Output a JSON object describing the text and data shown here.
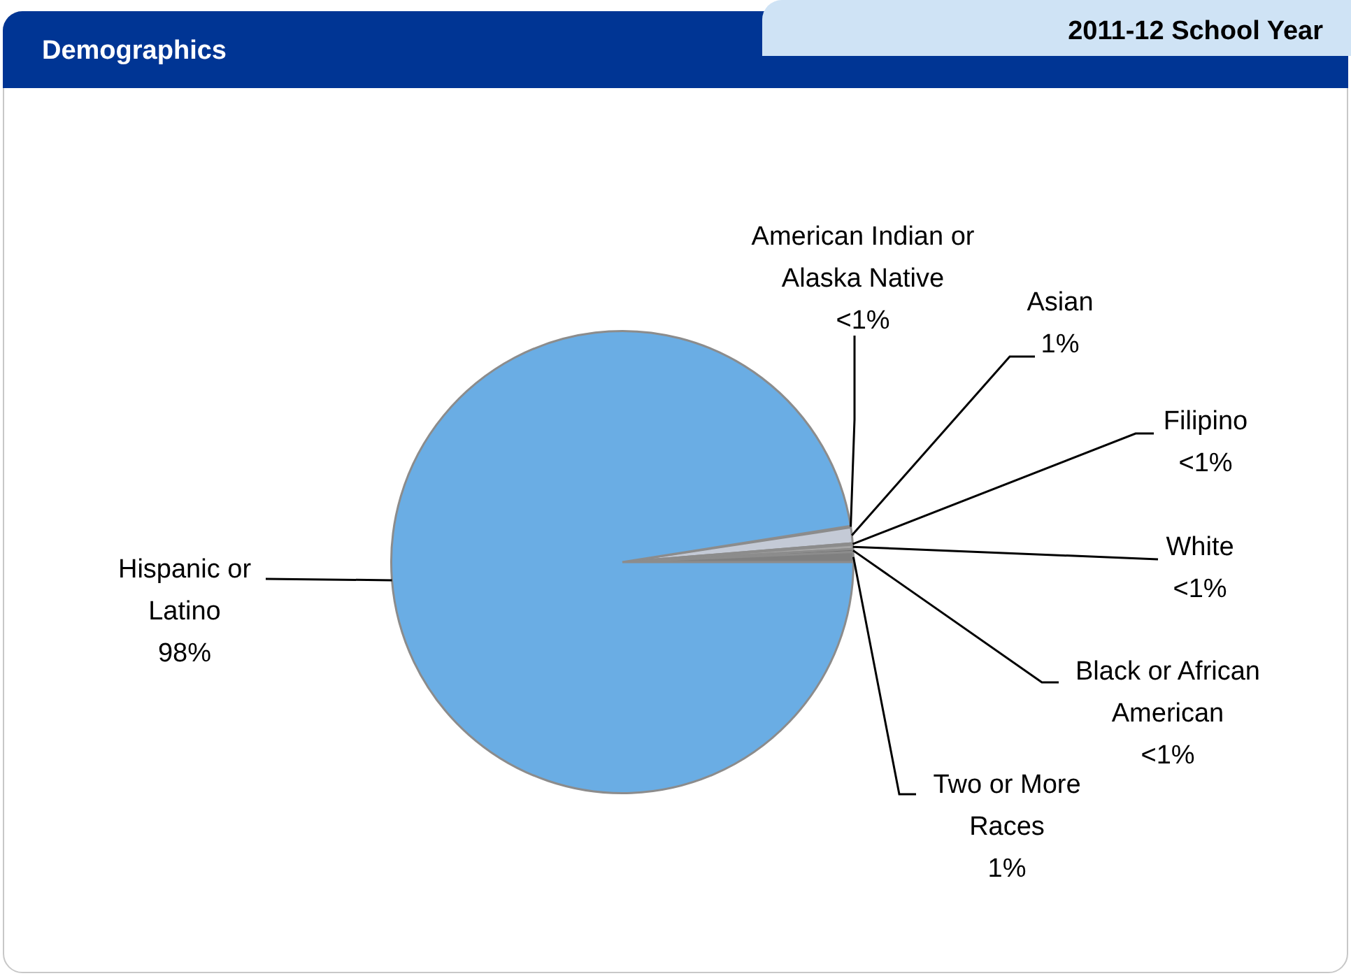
{
  "chart_data": {
    "type": "pie",
    "title": "Demographics",
    "subtitle": "2011-12 School Year",
    "categories": [
      "American Indian or Alaska Native",
      "Asian",
      "Filipino",
      "White",
      "Black or African American",
      "Two or More Races",
      "Hispanic or Latino"
    ],
    "values": [
      0.1,
      1.1,
      0.1,
      0.3,
      0.2,
      0.7,
      97.5
    ],
    "value_labels": [
      "<1%",
      "1%",
      "<1%",
      "<1%",
      "<1%",
      "1%",
      "98%"
    ],
    "colors": [
      "#5a5a5a",
      "#c4cad6",
      "#8a8a8a",
      "#a6a6a6",
      "#6e6e6e",
      "#7f7f7f",
      "#6aade4"
    ],
    "legend": false
  }
}
